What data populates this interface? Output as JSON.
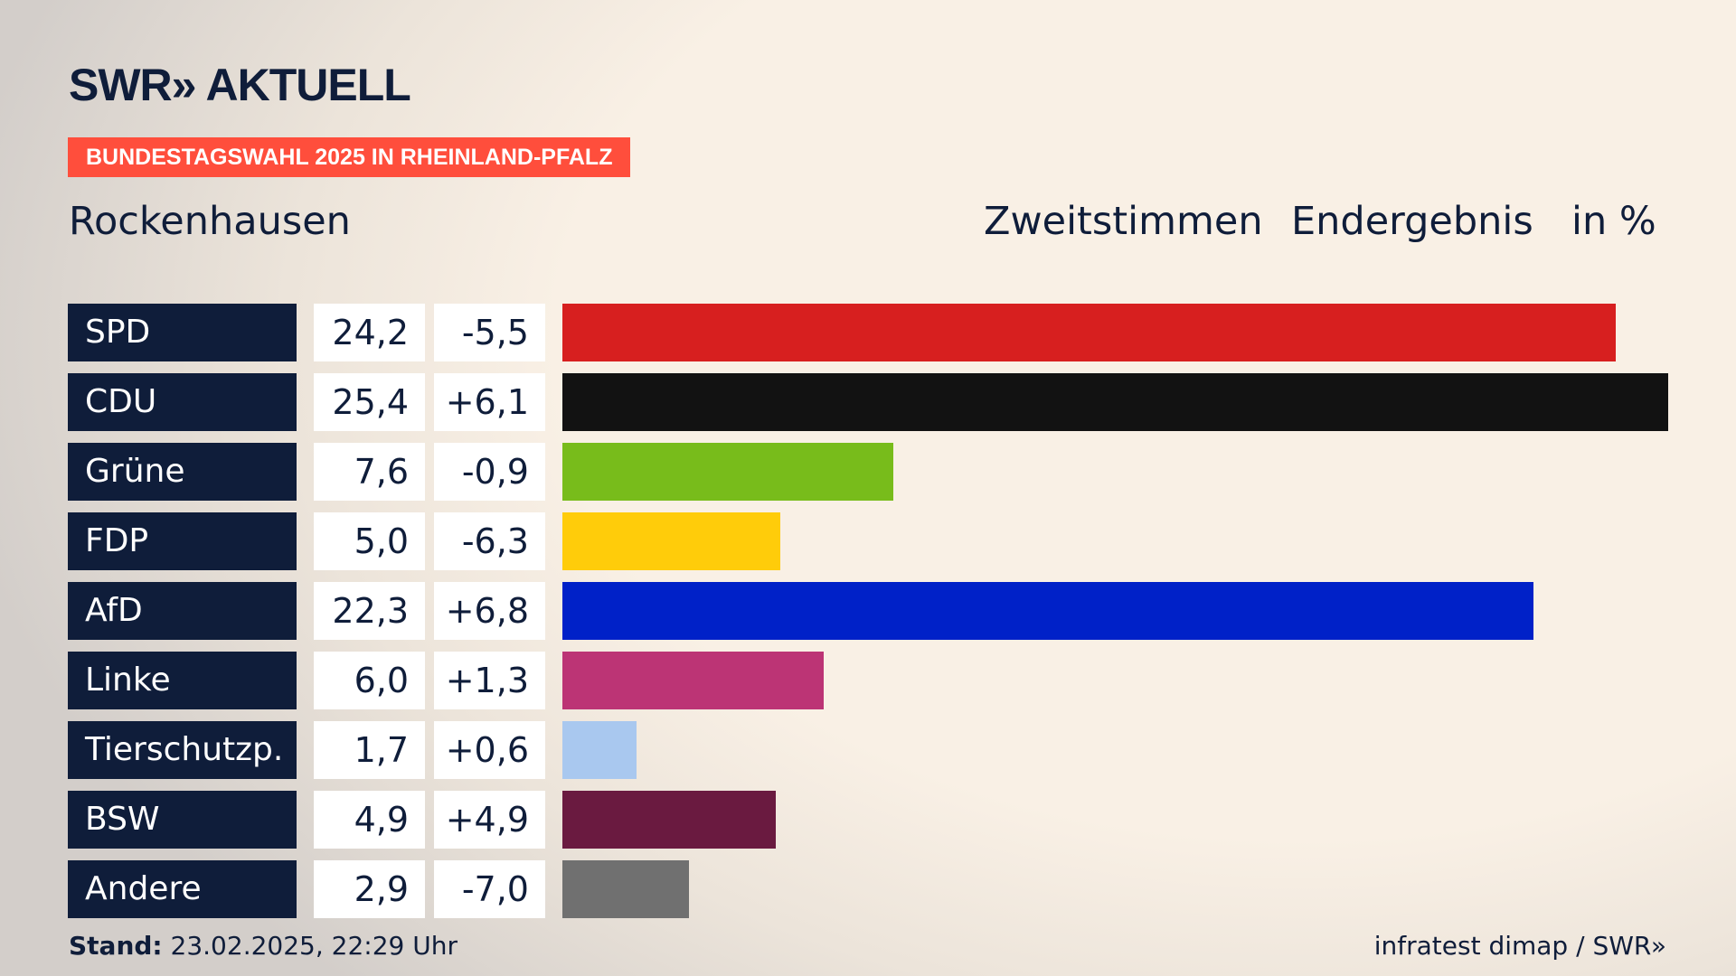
{
  "header": {
    "logo": "SWR» AKTUELL",
    "banner": "BUNDESTAGSWAHL 2025 IN RHEINLAND-PFALZ",
    "place": "Rockenhausen",
    "vote_type": "Zweitstimmen",
    "result_type": "Endergebnis",
    "unit": "in %"
  },
  "chart_data": {
    "type": "bar",
    "orientation": "horizontal",
    "title": "Rockenhausen – Zweitstimmen Endergebnis in %",
    "categories": [
      "SPD",
      "CDU",
      "Grüne",
      "FDP",
      "AfD",
      "Linke",
      "Tierschutzp.",
      "BSW",
      "Andere"
    ],
    "values": [
      24.2,
      25.4,
      7.6,
      5.0,
      22.3,
      6.0,
      1.7,
      4.9,
      2.9
    ],
    "value_labels": [
      "24,2",
      "25,4",
      "7,6",
      "5,0",
      "22,3",
      "6,0",
      "1,7",
      "4,9",
      "2,9"
    ],
    "diff_labels": [
      "-5,5",
      "+6,1",
      "-0,9",
      "-6,3",
      "+6,8",
      "+1,3",
      "+0,6",
      "+4,9",
      "-7,0"
    ],
    "diffs": [
      -5.5,
      6.1,
      -0.9,
      -6.3,
      6.8,
      1.3,
      0.6,
      4.9,
      -7.0
    ],
    "colors": [
      "#d71f1f",
      "#121212",
      "#78bc1b",
      "#ffcc0a",
      "#0021c8",
      "#bc3475",
      "#a9c8ef",
      "#6a1a40",
      "#707070"
    ],
    "xlim": [
      0,
      25.4
    ]
  },
  "footer": {
    "stand_label": "Stand:",
    "stand_value": "23.02.2025, 22:29 Uhr",
    "source": "infratest dimap / SWR»"
  }
}
